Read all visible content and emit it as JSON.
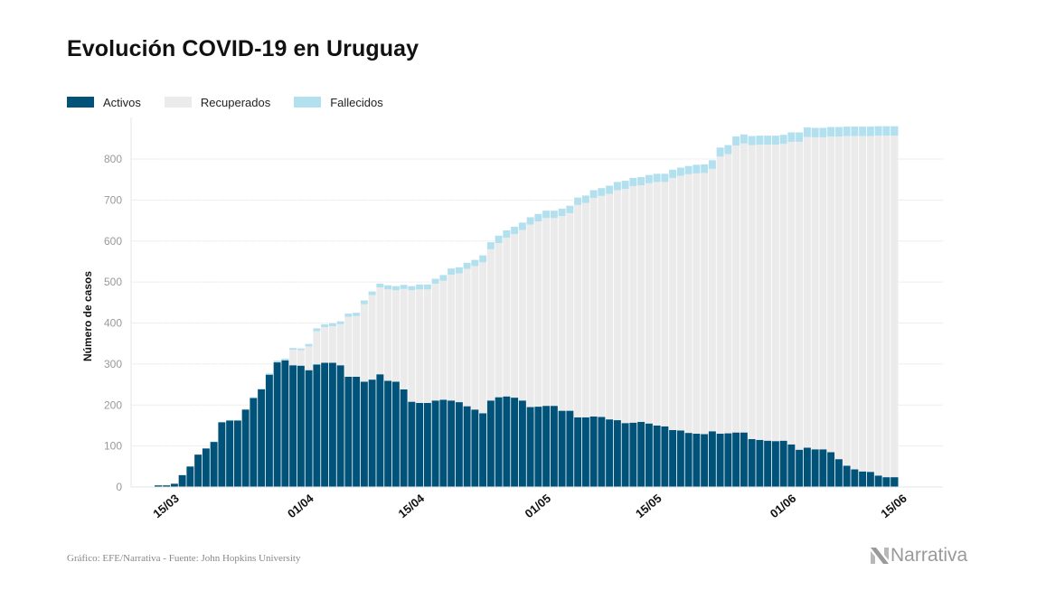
{
  "title": "Evolución COVID-19 en Uruguay",
  "legend": [
    {
      "label": "Activos",
      "color": "#005278"
    },
    {
      "label": "Recuperados",
      "color": "#ebebeb"
    },
    {
      "label": "Fallecidos",
      "color": "#b2e0ee"
    }
  ],
  "source": "Gráfico: EFE/Narrativa - Fuente: John Hopkins University",
  "brand": "Narrativa",
  "chart_data": {
    "type": "bar",
    "stacked": true,
    "start_date": "2020-03-13",
    "ylabel": "Número de casos",
    "xlabel": "",
    "ylim": [
      0,
      900
    ],
    "yticks": [
      0,
      100,
      200,
      300,
      400,
      500,
      600,
      700,
      800
    ],
    "xtick_labels": [
      {
        "label": "15/03",
        "date": "2020-03-15"
      },
      {
        "label": "01/04",
        "date": "2020-04-01"
      },
      {
        "label": "15/04",
        "date": "2020-04-15"
      },
      {
        "label": "01/05",
        "date": "2020-05-01"
      },
      {
        "label": "15/05",
        "date": "2020-05-15"
      },
      {
        "label": "01/06",
        "date": "2020-06-01"
      },
      {
        "label": "15/06",
        "date": "2020-06-15"
      }
    ],
    "grid": true,
    "series": [
      {
        "name": "Activos",
        "color": "#005278",
        "values": [
          4,
          4,
          8,
          29,
          50,
          79,
          94,
          110,
          158,
          162,
          162,
          189,
          217,
          238,
          274,
          304,
          309,
          297,
          296,
          285,
          299,
          303,
          303,
          297,
          269,
          269,
          257,
          262,
          275,
          259,
          257,
          238,
          208,
          205,
          205,
          211,
          213,
          211,
          207,
          197,
          189,
          180,
          211,
          219,
          221,
          218,
          211,
          195,
          196,
          198,
          198,
          186,
          186,
          170,
          170,
          172,
          171,
          165,
          163,
          156,
          157,
          159,
          155,
          150,
          148,
          139,
          138,
          132,
          130,
          129,
          136,
          130,
          131,
          133,
          133,
          117,
          115,
          113,
          112,
          113,
          104,
          91,
          96,
          92,
          92,
          85,
          68,
          52,
          43,
          38,
          37,
          28,
          24,
          24
        ]
      },
      {
        "name": "Recuperados",
        "color": "#ebebeb",
        "values": [
          0,
          0,
          0,
          0,
          0,
          0,
          0,
          0,
          0,
          0,
          0,
          0,
          0,
          0,
          0,
          0,
          0,
          38,
          38,
          58,
          81,
          87,
          89,
          100,
          146,
          148,
          189,
          206,
          212,
          223,
          223,
          245,
          272,
          277,
          277,
          285,
          290,
          307,
          314,
          335,
          350,
          368,
          369,
          376,
          387,
          399,
          416,
          445,
          452,
          458,
          458,
          475,
          482,
          518,
          523,
          533,
          539,
          550,
          561,
          571,
          577,
          577,
          586,
          594,
          596,
          615,
          621,
          631,
          635,
          637,
          640,
          676,
          681,
          700,
          705,
          717,
          720,
          722,
          723,
          724,
          738,
          751,
          758,
          761,
          761,
          770,
          787,
          804,
          813,
          818,
          819,
          829,
          833,
          833
        ]
      },
      {
        "name": "Fallecidos",
        "color": "#b2e0ee",
        "values": [
          0,
          0,
          0,
          0,
          0,
          0,
          0,
          1,
          1,
          1,
          1,
          1,
          2,
          2,
          3,
          4,
          4,
          4,
          4,
          6,
          7,
          7,
          7,
          7,
          8,
          8,
          9,
          9,
          9,
          10,
          10,
          10,
          10,
          12,
          12,
          12,
          14,
          15,
          15,
          15,
          15,
          17,
          17,
          18,
          18,
          18,
          18,
          18,
          18,
          18,
          18,
          18,
          18,
          18,
          18,
          19,
          19,
          20,
          20,
          20,
          20,
          20,
          20,
          20,
          20,
          20,
          20,
          20,
          21,
          21,
          21,
          22,
          22,
          22,
          22,
          22,
          22,
          22,
          22,
          22,
          23,
          23,
          23,
          23,
          23,
          23,
          23,
          23,
          23,
          23,
          23,
          23,
          23,
          23
        ]
      }
    ]
  }
}
